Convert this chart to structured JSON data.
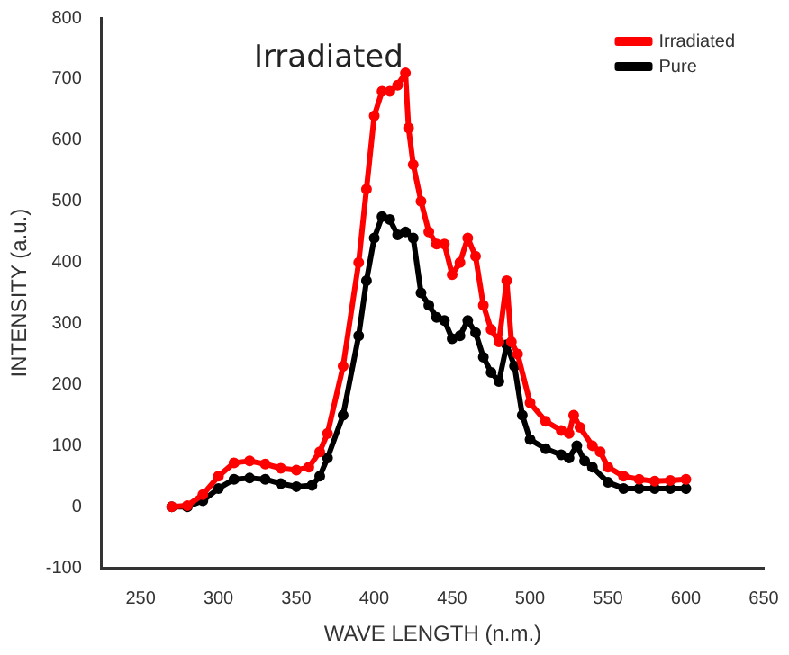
{
  "chart_data": {
    "type": "line",
    "xlabel": "WAVE LENGTH (n.m.)",
    "ylabel": "INTENSITY (a.u.)",
    "annotations": [
      "Irradiated"
    ],
    "xlim": [
      225,
      650
    ],
    "xticks": [
      250,
      300,
      350,
      400,
      450,
      500,
      550,
      600,
      650
    ],
    "ylim": [
      -100,
      800
    ],
    "yticks": [
      -100,
      0,
      100,
      200,
      300,
      400,
      500,
      600,
      700,
      800
    ],
    "legend": "top right",
    "marker": "circle",
    "line_style": "solid",
    "grid": false,
    "series": [
      {
        "name": "Pure",
        "color": "#000000",
        "x": [
          270,
          280,
          290,
          300,
          310,
          320,
          330,
          340,
          350,
          360,
          365,
          370,
          380,
          390,
          395,
          400,
          405,
          410,
          415,
          420,
          425,
          430,
          435,
          440,
          445,
          450,
          455,
          460,
          465,
          470,
          475,
          480,
          485,
          490,
          495,
          500,
          510,
          520,
          525,
          530,
          535,
          540,
          550,
          560,
          570,
          580,
          590,
          600
        ],
        "values": [
          0,
          0,
          10,
          30,
          45,
          47,
          45,
          38,
          33,
          35,
          50,
          80,
          150,
          280,
          370,
          440,
          475,
          470,
          445,
          450,
          440,
          350,
          330,
          310,
          305,
          275,
          280,
          305,
          285,
          245,
          220,
          205,
          265,
          230,
          150,
          110,
          95,
          85,
          80,
          100,
          75,
          65,
          40,
          30,
          30,
          30,
          30,
          30
        ]
      },
      {
        "name": "Irradiated",
        "color": "#ff0000",
        "x": [
          270,
          280,
          290,
          300,
          310,
          320,
          330,
          340,
          350,
          358,
          365,
          370,
          380,
          390,
          395,
          400,
          405,
          410,
          415,
          420,
          422,
          425,
          430,
          435,
          440,
          445,
          450,
          455,
          460,
          465,
          470,
          475,
          480,
          485,
          488,
          492,
          500,
          510,
          520,
          525,
          528,
          532,
          540,
          545,
          550,
          560,
          570,
          580,
          590,
          600
        ],
        "values": [
          0,
          2,
          20,
          50,
          72,
          75,
          70,
          63,
          60,
          65,
          90,
          120,
          230,
          400,
          520,
          640,
          680,
          680,
          690,
          710,
          620,
          560,
          500,
          450,
          430,
          430,
          380,
          400,
          440,
          410,
          330,
          290,
          270,
          370,
          270,
          250,
          170,
          140,
          125,
          120,
          150,
          130,
          100,
          90,
          65,
          50,
          45,
          42,
          43,
          45
        ]
      }
    ]
  }
}
